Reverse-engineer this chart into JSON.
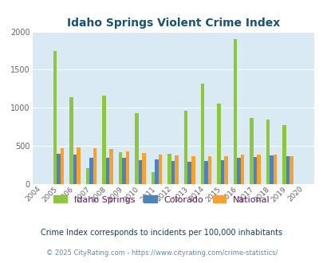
{
  "title": "Idaho Springs Violent Crime Index",
  "years": [
    2004,
    2005,
    2006,
    2007,
    2008,
    2009,
    2010,
    2011,
    2012,
    2013,
    2014,
    2015,
    2016,
    2017,
    2018,
    2019,
    2020
  ],
  "idaho_springs": [
    0,
    1750,
    1140,
    205,
    1155,
    415,
    930,
    160,
    395,
    960,
    1320,
    1055,
    1900,
    870,
    845,
    775,
    0
  ],
  "colorado": [
    0,
    395,
    390,
    345,
    350,
    345,
    315,
    325,
    305,
    295,
    305,
    315,
    345,
    360,
    375,
    370,
    0
  ],
  "national": [
    0,
    475,
    480,
    475,
    460,
    430,
    405,
    390,
    375,
    370,
    365,
    370,
    385,
    390,
    385,
    370,
    0
  ],
  "idaho_color": "#8dc63f",
  "colorado_color": "#4f81bd",
  "national_color": "#f9a12e",
  "bg_color": "#daeaf5",
  "ylim": [
    0,
    2000
  ],
  "yticks": [
    0,
    500,
    1000,
    1500,
    2000
  ],
  "subtitle": "Crime Index corresponds to incidents per 100,000 inhabitants",
  "footer": "© 2025 CityRating.com - https://www.cityrating.com/crime-statistics/",
  "legend_labels": [
    "Idaho Springs",
    "Colorado",
    "National"
  ],
  "title_color": "#1a5276",
  "subtitle_color": "#1a3a5c",
  "footer_color": "#5b8db8"
}
